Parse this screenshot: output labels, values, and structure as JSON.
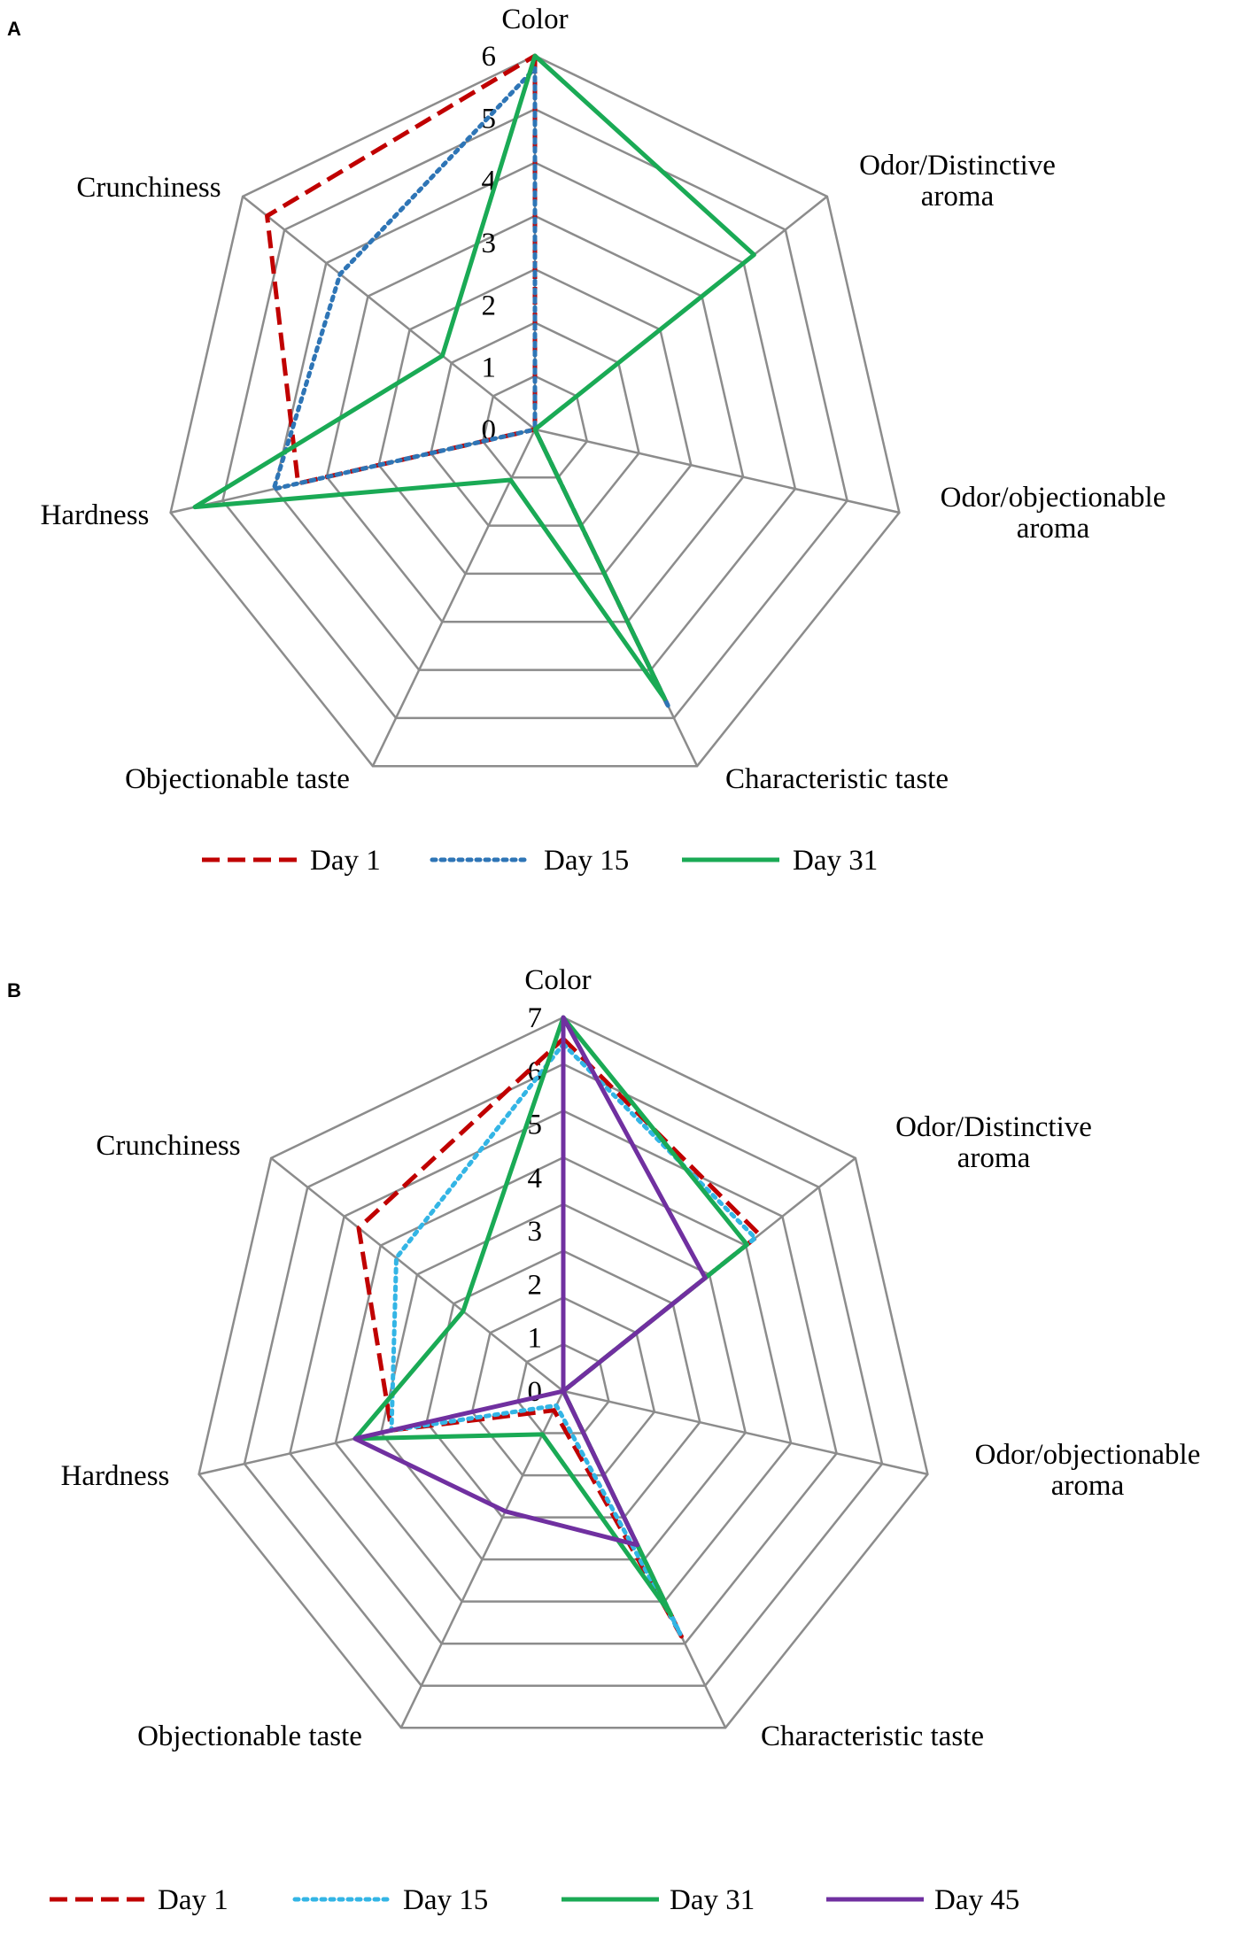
{
  "chart_data": [
    {
      "panel": "A",
      "type": "radar",
      "axes": [
        "Color",
        "Odor/Distinctive aroma",
        "Odor/objectionable aroma",
        "Characteristic taste",
        "Objectionable taste",
        "Hardness",
        "Crunchiness"
      ],
      "axis_label_lines": [
        [
          "Color"
        ],
        [
          "Odor/Distinctive",
          "aroma"
        ],
        [
          "Odor/objectionable",
          "aroma"
        ],
        [
          "Characteristic taste"
        ],
        [
          "Objectionable taste"
        ],
        [
          "Hardness"
        ],
        [
          "Crunchiness"
        ]
      ],
      "rmax": 6,
      "ticks": [
        "0",
        "1",
        "2",
        "3",
        "4",
        "5",
        "6"
      ],
      "grid_levels": 7,
      "series": [
        {
          "name": "Day 1",
          "color": "#c00000",
          "dash": "dashed",
          "values": [
            6,
            0,
            0,
            4.9,
            0,
            3.9,
            5.5
          ]
        },
        {
          "name": "Day 15",
          "color": "#2e75b6",
          "dash": "dotted",
          "values": [
            5.8,
            0,
            0,
            4.95,
            0,
            4.3,
            4.0
          ]
        },
        {
          "name": "Day 31",
          "color": "#1aaa55",
          "dash": "solid",
          "values": [
            6,
            4.5,
            0,
            4.8,
            0.9,
            5.6,
            1.9
          ]
        }
      ],
      "legend_position": "bottom"
    },
    {
      "panel": "B",
      "type": "radar",
      "axes": [
        "Color",
        "Odor/Distinctive aroma",
        "Odor/objectionable aroma",
        "Characteristic taste",
        "Objectionable taste",
        "Hardness",
        "Crunchiness"
      ],
      "axis_label_lines": [
        [
          "Color"
        ],
        [
          "Odor/Distinctive",
          "aroma"
        ],
        [
          "Odor/objectionable",
          "aroma"
        ],
        [
          "Characteristic taste"
        ],
        [
          "Objectionable taste"
        ],
        [
          "Hardness"
        ],
        [
          "Crunchiness"
        ]
      ],
      "rmax": 7,
      "ticks": [
        "0",
        "1",
        "2",
        "3",
        "4",
        "5",
        "6",
        "7"
      ],
      "grid_levels": 8,
      "series": [
        {
          "name": "Day 1",
          "color": "#c00000",
          "dash": "dashed",
          "values": [
            6.6,
            4.7,
            0,
            5.1,
            0.4,
            3.3,
            4.9
          ]
        },
        {
          "name": "Day 15",
          "color": "#33b5e5",
          "dash": "dotted",
          "values": [
            6.5,
            4.6,
            0,
            5.05,
            0.3,
            3.3,
            4.0
          ]
        },
        {
          "name": "Day 31",
          "color": "#1aaa55",
          "dash": "solid",
          "values": [
            7,
            4.4,
            0,
            4.65,
            0.9,
            4.0,
            2.4
          ]
        },
        {
          "name": "Day 45",
          "color": "#7030a0",
          "dash": "solid",
          "values": [
            7,
            3.4,
            0,
            3.2,
            2.5,
            4.0,
            0
          ]
        }
      ],
      "legend_position": "bottom"
    }
  ]
}
